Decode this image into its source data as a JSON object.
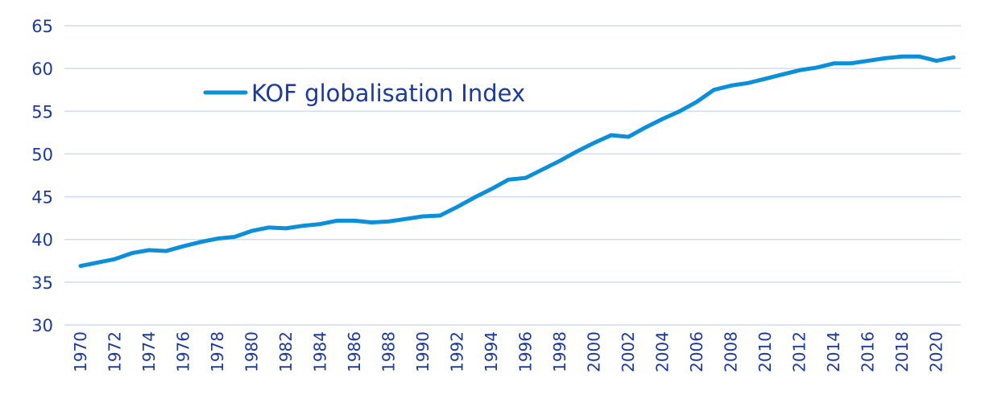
{
  "chart_data": {
    "type": "line",
    "title": "",
    "xlabel": "",
    "ylabel": "",
    "ylim": [
      30,
      65
    ],
    "yticks": [
      30,
      35,
      40,
      45,
      50,
      55,
      60,
      65
    ],
    "xlim": [
      1970,
      2021
    ],
    "xticks": [
      "1970",
      "1972",
      "1974",
      "1976",
      "1978",
      "1980",
      "1982",
      "1984",
      "1986",
      "1988",
      "1990",
      "1992",
      "1994",
      "1996",
      "1998",
      "2000",
      "2002",
      "2004",
      "2006",
      "2008",
      "2010",
      "2012",
      "2014",
      "2016",
      "2018",
      "2020"
    ],
    "grid": true,
    "legend_position": "top-left",
    "x": [
      1970,
      1971,
      1972,
      1973,
      1974,
      1975,
      1976,
      1977,
      1978,
      1979,
      1980,
      1981,
      1982,
      1983,
      1984,
      1985,
      1986,
      1987,
      1988,
      1989,
      1990,
      1991,
      1992,
      1993,
      1994,
      1995,
      1996,
      1997,
      1998,
      1999,
      2000,
      2001,
      2002,
      2003,
      2004,
      2005,
      2006,
      2007,
      2008,
      2009,
      2010,
      2011,
      2012,
      2013,
      2014,
      2015,
      2016,
      2017,
      2018,
      2019,
      2020,
      2021
    ],
    "series": [
      {
        "name": "KOF globalisation Index",
        "color": "#0b8fd8",
        "values": [
          36.9,
          37.3,
          37.7,
          38.4,
          38.75,
          38.65,
          39.2,
          39.7,
          40.1,
          40.3,
          41.0,
          41.4,
          41.3,
          41.6,
          41.8,
          42.2,
          42.2,
          42.0,
          42.1,
          42.4,
          42.7,
          42.8,
          43.8,
          44.9,
          45.9,
          47.0,
          47.2,
          48.2,
          49.2,
          50.3,
          51.3,
          52.2,
          52.0,
          53.1,
          54.1,
          55.0,
          56.1,
          57.5,
          58.0,
          58.3,
          58.8,
          59.3,
          59.8,
          60.1,
          60.6,
          60.6,
          60.9,
          61.2,
          61.4,
          61.4,
          60.9,
          61.3
        ]
      }
    ]
  }
}
